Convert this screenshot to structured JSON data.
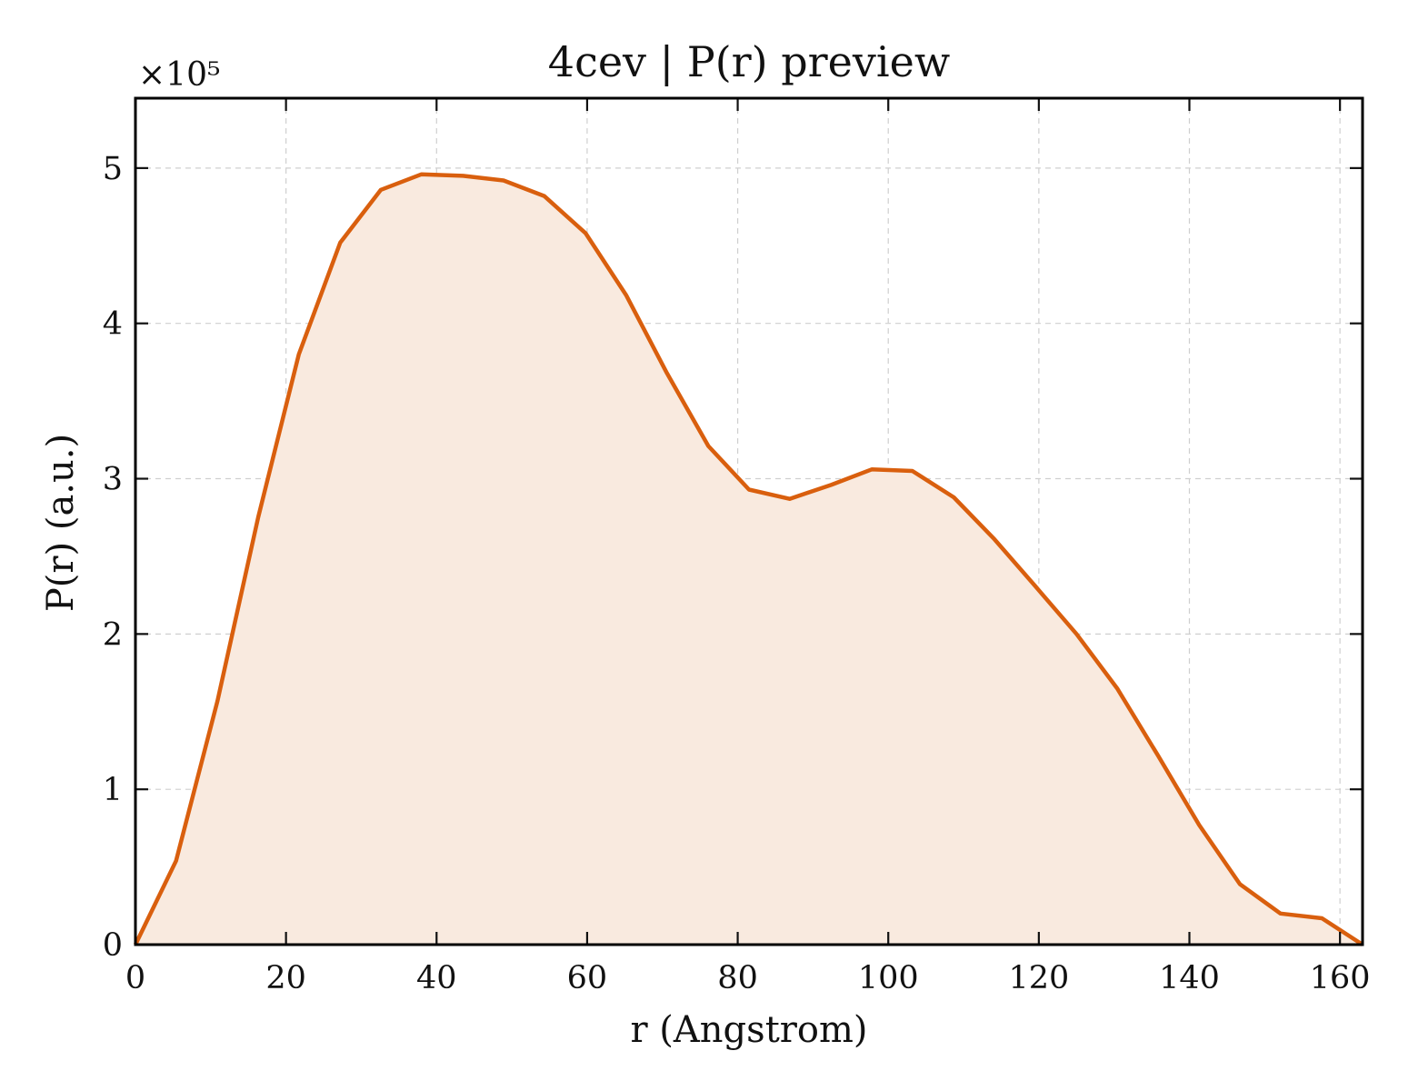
{
  "chart_data": {
    "type": "area",
    "title": "4cev | P(r) preview",
    "xlabel": "r (Angstrom)",
    "ylabel": "P(r) (a.u.)",
    "y_scale_label": "×10⁵",
    "xlim": [
      0,
      163
    ],
    "ylim": [
      0,
      5.45
    ],
    "xticks": [
      0,
      20,
      40,
      60,
      80,
      100,
      120,
      140,
      160
    ],
    "yticks": [
      0,
      1,
      2,
      3,
      4,
      5
    ],
    "grid": true,
    "colors": {
      "line": "#d95f0e",
      "fill": "#f9eadf"
    },
    "series": [
      {
        "x": [
          0,
          5.4,
          10.9,
          16.3,
          21.7,
          27.2,
          32.6,
          38.0,
          43.5,
          48.9,
          54.3,
          59.8,
          65.2,
          70.6,
          76.1,
          81.5,
          86.9,
          92.4,
          97.8,
          103.2,
          108.7,
          114.1,
          119.5,
          125.0,
          130.4,
          135.8,
          141.3,
          146.7,
          152.1,
          157.6,
          163.0
        ],
        "y": [
          0.0,
          0.54,
          1.57,
          2.75,
          3.8,
          4.52,
          4.86,
          4.96,
          4.95,
          4.92,
          4.82,
          4.58,
          4.18,
          3.68,
          3.21,
          2.93,
          2.87,
          2.96,
          3.06,
          3.05,
          2.88,
          2.61,
          2.31,
          2.0,
          1.65,
          1.22,
          0.77,
          0.39,
          0.2,
          0.17,
          0.0
        ]
      }
    ]
  }
}
